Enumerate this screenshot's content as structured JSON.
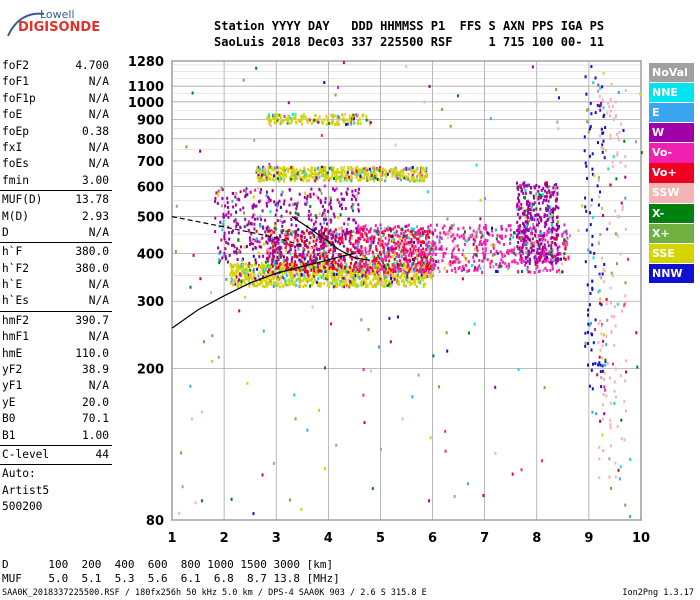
{
  "logo": {
    "top": "Lowell",
    "brand": "DIGISONDE"
  },
  "header": {
    "line1": "Station YYYY DAY   DDD HHMMSS P1  FFS S AXN PPS IGA PS",
    "line2": "SaoLuis 2018 Dec03 337 225500 RSF     1 715 100 00- 11"
  },
  "params": [
    [
      [
        "foF2",
        "4.700"
      ],
      [
        "foF1",
        "N/A"
      ],
      [
        "foF1p",
        "N/A"
      ],
      [
        "foE",
        "N/A"
      ],
      [
        "foEp",
        "0.38"
      ],
      [
        "fxI",
        "N/A"
      ],
      [
        "foEs",
        "N/A"
      ],
      [
        "fmin",
        "3.00"
      ]
    ],
    [
      [
        "MUF(D)",
        "13.78"
      ],
      [
        "M(D)",
        "2.93"
      ],
      [
        "D",
        "N/A"
      ]
    ],
    [
      [
        "h`F",
        "380.0"
      ],
      [
        "h`F2",
        "380.0"
      ],
      [
        "h`E",
        "N/A"
      ],
      [
        "h`Es",
        "N/A"
      ]
    ],
    [
      [
        "hmF2",
        "390.7"
      ],
      [
        "hmF1",
        "N/A"
      ],
      [
        "hmE",
        "110.0"
      ],
      [
        "yF2",
        "38.9"
      ],
      [
        "yF1",
        "N/A"
      ],
      [
        "yE",
        "20.0"
      ],
      [
        "B0",
        "70.1"
      ],
      [
        "B1",
        "1.00"
      ]
    ],
    [
      [
        "C-level",
        "44"
      ]
    ]
  ],
  "auto": [
    "Auto:",
    "Artist5",
    "500200"
  ],
  "legend": [
    {
      "label": "NoVal",
      "color": "#a0a0a0"
    },
    {
      "label": "NNE",
      "color": "#00e4f0"
    },
    {
      "label": "E",
      "color": "#3aa6f0"
    },
    {
      "label": "W",
      "color": "#a000a8"
    },
    {
      "label": "Vo-",
      "color": "#f020b0"
    },
    {
      "label": "Vo+",
      "color": "#f00020"
    },
    {
      "label": "SSW",
      "color": "#f4b4b4"
    },
    {
      "label": "X-",
      "color": "#00800f"
    },
    {
      "label": "X+",
      "color": "#70b040"
    },
    {
      "label": "SSE",
      "color": "#d4d400"
    },
    {
      "label": "NNW",
      "color": "#1010d0"
    }
  ],
  "footer": {
    "d_line": "D      100  200  400  600  800 1000 1500 3000 [km]",
    "muf_line": "MUF    5.0  5.1  5.3  5.6  6.1  6.8  8.7 13.8 [MHz]",
    "file_line": "SAA0K_2018337225500.RSF / 180fx256h 50 kHz 5.0 km / DPS-4 SAA0K 903 / 2.6 S 315.8 E",
    "version": "Ion2Png 1.3.17"
  },
  "chart_data": {
    "type": "scatter",
    "title": "",
    "xlabel": "",
    "ylabel": "",
    "xlim": [
      1,
      10
    ],
    "ylim": [
      80,
      1280
    ],
    "y_scale": "log",
    "xticks": [
      1,
      2,
      3,
      4,
      5,
      6,
      7,
      8,
      9,
      10
    ],
    "yticks": [
      80,
      200,
      300,
      400,
      500,
      600,
      700,
      800,
      900,
      1000,
      1100,
      1280
    ],
    "grid": true,
    "legend_position": "right",
    "clusters": [
      {
        "name": "main-trace",
        "color": "SSE",
        "fmin": 2.1,
        "fmax": 6.0,
        "hmin": 330,
        "hmax": 380,
        "n": 900
      },
      {
        "name": "main-echo",
        "color": "Vo+",
        "fmin": 2.8,
        "fmax": 6.0,
        "hmin": 360,
        "hmax": 470,
        "n": 700
      },
      {
        "name": "w-echo",
        "color": "W",
        "fmin": 1.8,
        "fmax": 4.6,
        "hmin": 380,
        "hmax": 600,
        "n": 500
      },
      {
        "name": "spread-mid",
        "color": "Vo-",
        "fmin": 4.5,
        "fmax": 8.6,
        "hmin": 360,
        "hmax": 480,
        "n": 700
      },
      {
        "name": "band-8MHz",
        "color": "W",
        "fmin": 7.6,
        "fmax": 8.4,
        "hmin": 380,
        "hmax": 620,
        "n": 400
      },
      {
        "name": "second-hop",
        "color": "SSE",
        "fmin": 2.6,
        "fmax": 5.9,
        "hmin": 625,
        "hmax": 680,
        "n": 500
      },
      {
        "name": "third-hop",
        "color": "SSE",
        "fmin": 2.8,
        "fmax": 4.8,
        "hmin": 880,
        "hmax": 935,
        "n": 150
      },
      {
        "name": "scatter-9MHz",
        "color": "NNW",
        "fmin": 8.9,
        "fmax": 9.3,
        "hmin": 170,
        "hmax": 1250,
        "n": 120
      },
      {
        "name": "scatter-9_6MHz",
        "color": "SSW",
        "fmin": 9.15,
        "fmax": 9.7,
        "hmin": 100,
        "hmax": 1150,
        "n": 140
      }
    ],
    "profile_curves": [
      {
        "name": "lower-curve",
        "style": "solid",
        "x": [
          1.0,
          1.5,
          2.0,
          2.5,
          3.0,
          3.5,
          4.0,
          4.3,
          4.5
        ],
        "y": [
          255,
          285,
          310,
          335,
          355,
          370,
          385,
          395,
          400
        ]
      },
      {
        "name": "upper-curve",
        "style": "solid",
        "x": [
          3.3,
          3.6,
          3.9,
          4.2,
          4.5,
          4.8
        ],
        "y": [
          500,
          470,
          440,
          410,
          390,
          384
        ]
      },
      {
        "name": "dashed-curve",
        "style": "dashed",
        "x": [
          1.0,
          1.5,
          2.0,
          2.5,
          3.0,
          3.5
        ],
        "y": [
          500,
          485,
          470,
          455,
          440,
          420
        ]
      }
    ]
  }
}
